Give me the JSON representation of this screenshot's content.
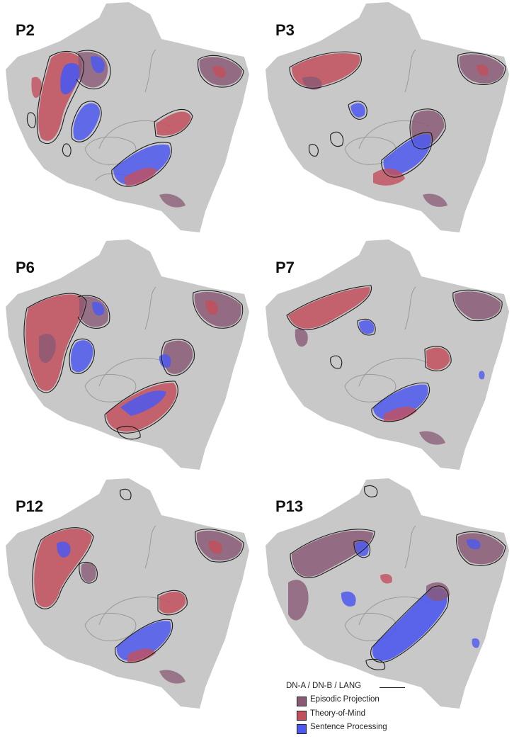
{
  "panels": [
    {
      "label": "P2"
    },
    {
      "label": "P3"
    },
    {
      "label": "P6"
    },
    {
      "label": "P7"
    },
    {
      "label": "P12"
    },
    {
      "label": "P13"
    }
  ],
  "legend": {
    "outline_label": "DN-A / DN-B / LANG",
    "items": [
      {
        "label": "Episodic Projection",
        "color": "#8a5a75"
      },
      {
        "label": "Theory-of-Mind",
        "color": "#c2505c"
      },
      {
        "label": "Sentence Processing",
        "color": "#4d59ee"
      }
    ]
  },
  "colors": {
    "cortex": "#c8c8c8",
    "outline": "#1a1a1a",
    "sulcus": "#9a9a9a"
  }
}
